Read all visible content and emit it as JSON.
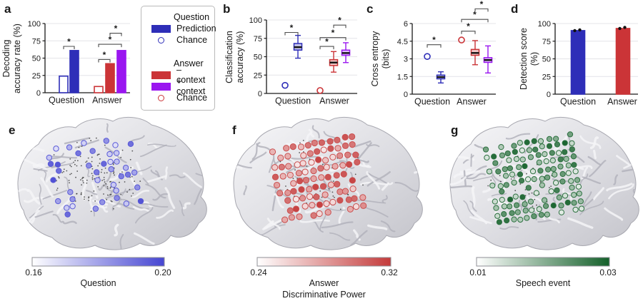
{
  "colors": {
    "blue": "#2e2eb8",
    "red": "#cb3437",
    "purple": "#9a16f0",
    "colorbar_blue": "#4646d2",
    "colorbar_red": "#c43b3b",
    "colorbar_green": "#14602a",
    "grid": "#e4e4e8",
    "axis": "#1a1a1a",
    "bracket": "#4d4d4d",
    "dot_black": "#111111"
  },
  "legend": {
    "question_header": "Question",
    "prediction_label": "Prediction",
    "question_chance_label": "Chance",
    "answer_header": "Answer",
    "minus_context_label": "– context",
    "plus_context_label": "+ context",
    "answer_chance_label": "Chance"
  },
  "chart_data": [
    {
      "panel_letter": "a",
      "type": "bar",
      "ylabel": "Decoding accuracy rate (%)",
      "ylabel_lines": [
        "Decoding",
        "accuracy rate (%)"
      ],
      "ylim": [
        0,
        100
      ],
      "yticks": [
        0,
        25,
        50,
        75,
        100
      ],
      "categories": [
        "Question",
        "Answer"
      ],
      "bars": [
        {
          "name": "Question chance",
          "value": 24,
          "color": "blue",
          "style": "open"
        },
        {
          "name": "Question prediction",
          "value": 61,
          "color": "blue",
          "style": "filled"
        },
        {
          "name": "Answer chance",
          "value": 9,
          "color": "red",
          "style": "open"
        },
        {
          "name": "Answer minus context",
          "value": 42,
          "color": "red",
          "style": "filled"
        },
        {
          "name": "Answer plus context",
          "value": 61,
          "color": "purple",
          "style": "filled"
        }
      ],
      "significance": [
        {
          "between": [
            0,
            1
          ],
          "y": 67,
          "label": "*"
        },
        {
          "between": [
            2,
            3
          ],
          "y": 48,
          "label": "*"
        },
        {
          "between": [
            2,
            4
          ],
          "y": 70,
          "label": "*"
        },
        {
          "between": [
            3,
            4
          ],
          "y": 86,
          "label": "*"
        }
      ]
    },
    {
      "panel_letter": "b",
      "type": "box",
      "ylabel": "Classification accuracy (%)",
      "ylabel_lines": [
        "Classification",
        "accuracy (%)"
      ],
      "ylim": [
        0,
        100
      ],
      "yticks": [
        0,
        25,
        50,
        75,
        100
      ],
      "categories": [
        "Question",
        "Answer"
      ],
      "items": [
        {
          "name": "Question chance",
          "kind": "point",
          "value": 11,
          "color": "blue"
        },
        {
          "name": "Question prediction",
          "kind": "box",
          "color": "blue",
          "whisker_low": 48,
          "q1": 59,
          "median": 63,
          "q3": 68,
          "whisker_high": 79
        },
        {
          "name": "Answer chance",
          "kind": "point",
          "value": 4,
          "color": "red"
        },
        {
          "name": "Answer minus context",
          "kind": "box",
          "color": "red",
          "whisker_low": 29,
          "q1": 38,
          "median": 42,
          "q3": 46,
          "whisker_high": 57
        },
        {
          "name": "Answer plus context",
          "kind": "box",
          "color": "purple",
          "whisker_low": 42,
          "q1": 52,
          "median": 55,
          "q3": 59,
          "whisker_high": 69
        }
      ],
      "significance": [
        {
          "between": [
            0,
            1
          ],
          "y": 83,
          "label": "*"
        },
        {
          "between": [
            2,
            3
          ],
          "y": 64,
          "label": "*"
        },
        {
          "between": [
            2,
            4
          ],
          "y": 76,
          "label": "*"
        },
        {
          "between": [
            3,
            4
          ],
          "y": 93,
          "label": "*"
        }
      ]
    },
    {
      "panel_letter": "c",
      "type": "box",
      "ylabel": "Cross entropy (bits)",
      "ylabel_lines": [
        "Cross entropy",
        "(bits)"
      ],
      "ylim": [
        0,
        6
      ],
      "yticks": [
        0,
        1.5,
        3,
        4.5,
        6
      ],
      "categories": [
        "Question",
        "Answer"
      ],
      "items": [
        {
          "name": "Question chance",
          "kind": "point",
          "value": 3.2,
          "color": "blue"
        },
        {
          "name": "Question prediction",
          "kind": "box",
          "color": "blue",
          "whisker_low": 0.95,
          "q1": 1.3,
          "median": 1.45,
          "q3": 1.62,
          "whisker_high": 1.9
        },
        {
          "name": "Answer chance",
          "kind": "point",
          "value": 4.6,
          "color": "red"
        },
        {
          "name": "Answer minus context",
          "kind": "box",
          "color": "red",
          "whisker_low": 2.5,
          "q1": 3.3,
          "median": 3.5,
          "q3": 3.8,
          "whisker_high": 4.55
        },
        {
          "name": "Answer plus context",
          "kind": "box",
          "color": "purple",
          "whisker_low": 1.8,
          "q1": 2.7,
          "median": 2.9,
          "q3": 3.1,
          "whisker_high": 4.1
        }
      ],
      "significance": [
        {
          "between": [
            0,
            1
          ],
          "y": 4.2,
          "label": "*"
        },
        {
          "between": [
            2,
            3
          ],
          "y": 5.35,
          "label": "*"
        },
        {
          "between": [
            2,
            4
          ],
          "y": 6.35,
          "label": "*"
        },
        {
          "between": [
            3,
            4
          ],
          "y": 7.25,
          "label": "*"
        }
      ]
    },
    {
      "panel_letter": "d",
      "type": "bar",
      "ylabel": "Detection score (%)",
      "ylabel_lines": [
        "Detection score",
        "(%)"
      ],
      "ylim": [
        0,
        100
      ],
      "yticks": [
        0,
        25,
        50,
        75,
        100
      ],
      "categories": [
        "Question",
        "Answer"
      ],
      "bars": [
        {
          "name": "Question",
          "value": 90,
          "color": "blue",
          "style": "filled",
          "dots": [
            90,
            91
          ]
        },
        {
          "name": "Answer",
          "value": 93,
          "color": "red",
          "style": "filled",
          "dots": [
            93,
            94.5
          ]
        }
      ],
      "significance": []
    },
    {
      "panel_letter": "e",
      "type": "brain-map",
      "caption": "Question",
      "colorbar": {
        "min_label": "0.16",
        "max_label": "0.20",
        "color": "colorbar_blue"
      }
    },
    {
      "panel_letter": "f",
      "type": "brain-map",
      "caption": "Answer",
      "xlabel": "Discriminative Power",
      "colorbar": {
        "min_label": "0.24",
        "max_label": "0.32",
        "color": "colorbar_red"
      }
    },
    {
      "panel_letter": "g",
      "type": "brain-map",
      "caption": "Speech event",
      "colorbar": {
        "min_label": "0.01",
        "max_label": "0.03",
        "color": "colorbar_green"
      }
    }
  ]
}
